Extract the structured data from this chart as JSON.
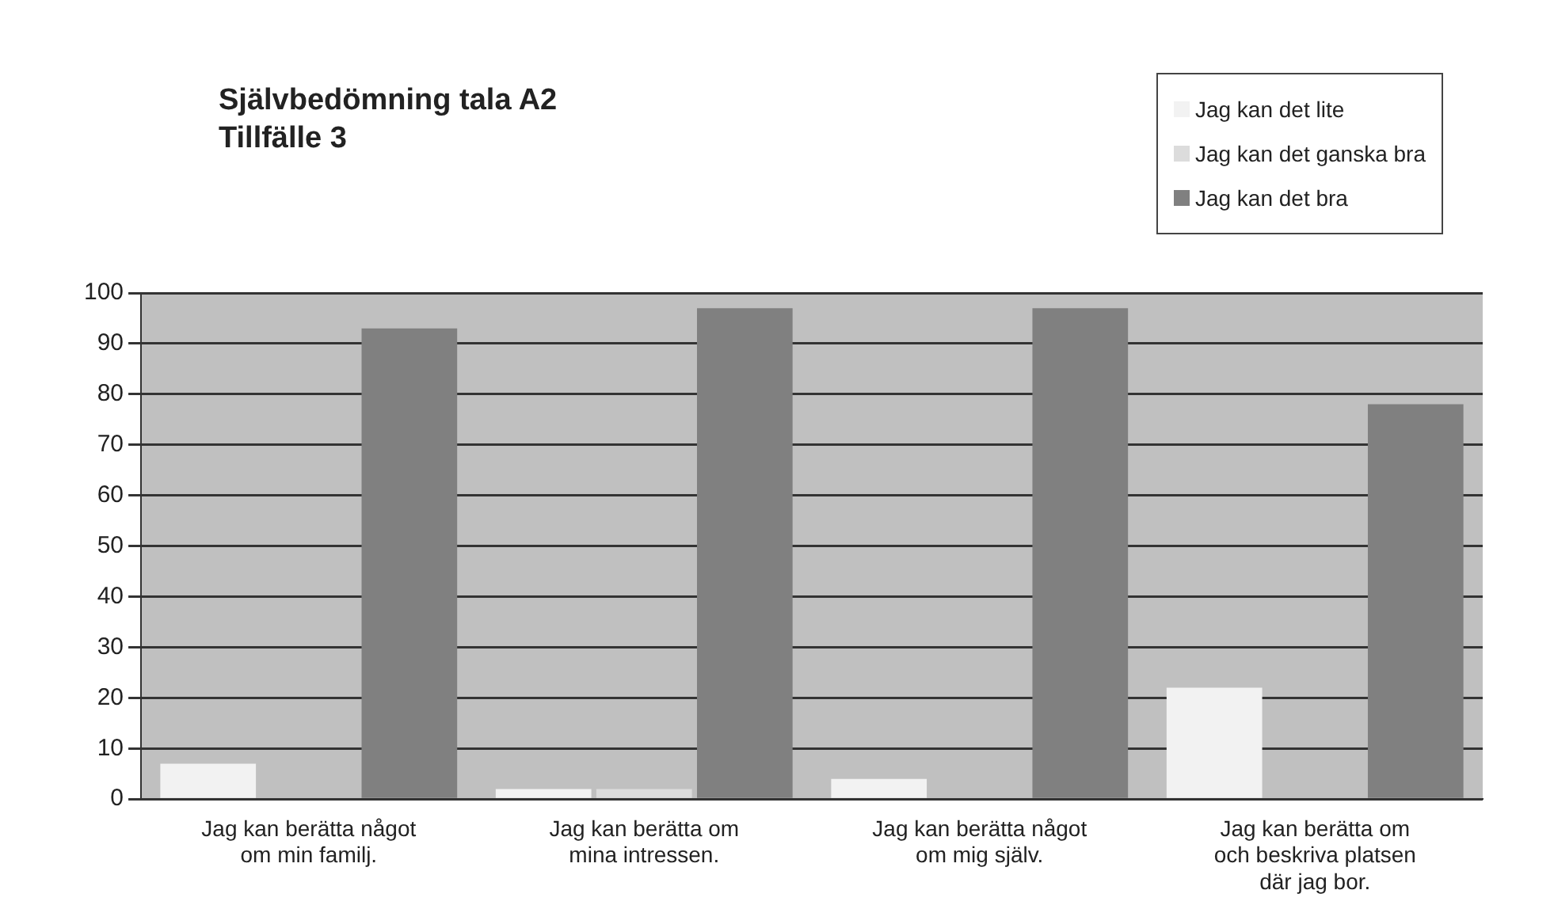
{
  "chart_data": {
    "type": "bar",
    "title": "Självbedömning tala A2\nTillfälle 3",
    "categories": [
      "Jag kan berätta något om min familj.",
      "Jag kan berätta om mina intressen.",
      "Jag kan berätta något om mig själv.",
      "Jag kan berätta om och beskriva platsen där jag bor."
    ],
    "series": [
      {
        "name": "Jag kan det lite",
        "color": "#f2f2f2",
        "values": [
          7,
          2,
          4,
          22
        ]
      },
      {
        "name": "Jag kan det ganska bra",
        "color": "#dcdcdc",
        "values": [
          0,
          2,
          0,
          0
        ]
      },
      {
        "name": "Jag kan det bra",
        "color": "#808080",
        "values": [
          93,
          97,
          97,
          78
        ]
      }
    ],
    "ylim": [
      0,
      100
    ],
    "yticks": [
      0,
      10,
      20,
      30,
      40,
      50,
      60,
      70,
      80,
      90,
      100
    ],
    "grid": "y",
    "legend": "top right"
  }
}
